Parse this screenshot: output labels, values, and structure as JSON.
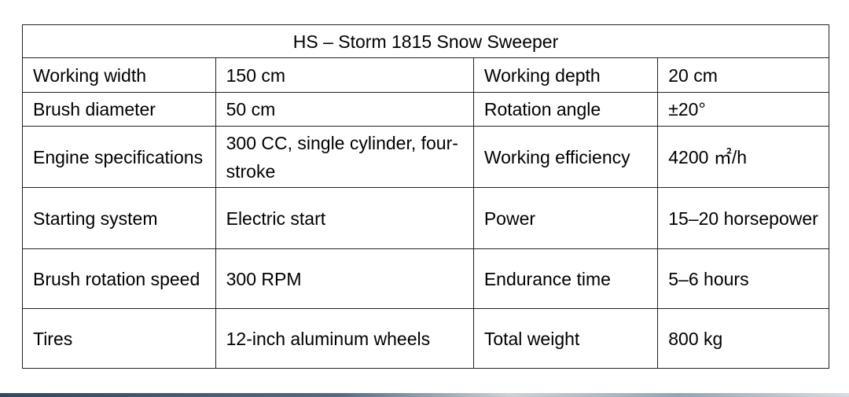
{
  "title": "HS – Storm 1815 Snow Sweeper",
  "rows": [
    [
      "Working width",
      "150 cm",
      "Working depth",
      "20 cm"
    ],
    [
      "Brush diameter",
      "50 cm",
      "Rotation angle",
      "±20°"
    ],
    [
      "Engine specifications",
      "300 CC, single cylinder, four-stroke",
      "Working efficiency",
      "4200 ㎡/h"
    ],
    [
      "Starting system",
      "Electric start",
      "Power",
      "15–20 horsepower"
    ],
    [
      "Brush rotation speed",
      "300 RPM",
      "Endurance time",
      "5–6 hours"
    ],
    [
      "Tires",
      "12-inch aluminum wheels",
      "Total weight",
      "800 kg"
    ]
  ]
}
